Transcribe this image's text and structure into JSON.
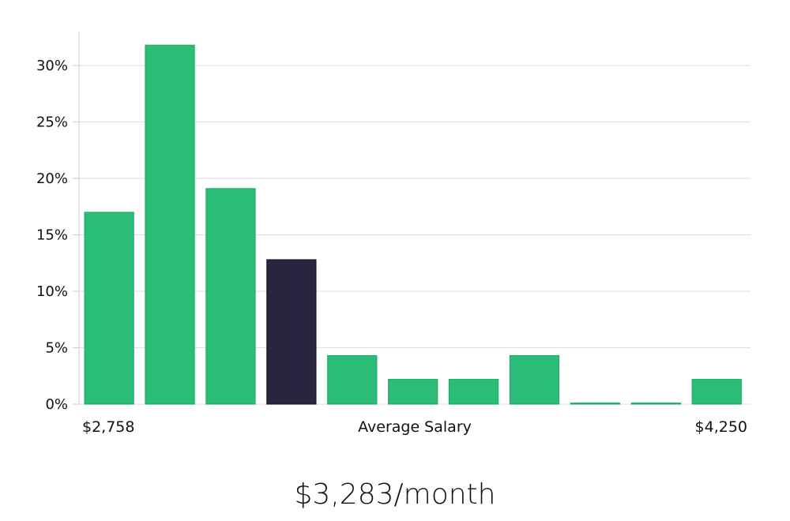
{
  "chart_data": {
    "type": "bar",
    "categories": [
      "1",
      "2",
      "3",
      "4",
      "5",
      "6",
      "7",
      "8",
      "9",
      "10",
      "11"
    ],
    "values": [
      17.0,
      31.8,
      19.1,
      12.8,
      4.3,
      2.2,
      2.2,
      4.3,
      0.1,
      0.1,
      2.2
    ],
    "highlight_index": 3,
    "ylim": [
      0,
      33
    ],
    "yticks": [
      0,
      5,
      10,
      15,
      20,
      25,
      30
    ],
    "ytick_labels": [
      "0%",
      "5%",
      "10%",
      "15%",
      "20%",
      "25%",
      "30%"
    ],
    "x_min_label": "$2,758",
    "xlabel": "Average Salary",
    "x_max_label": "$4,250",
    "grid": true,
    "colors": {
      "bar": "#2bbd77",
      "highlight": "#29243f",
      "grid": "#dddddd",
      "axis": "#cccccc"
    }
  },
  "summary": "$3,283/month"
}
